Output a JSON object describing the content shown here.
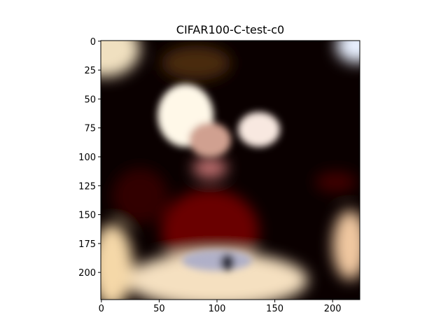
{
  "chart_data": {
    "type": "image",
    "title": "CIFAR100-C-test-c0",
    "xlim": [
      -0.5,
      223.5
    ],
    "ylim": [
      223.5,
      -0.5
    ],
    "xticks": [
      0,
      50,
      100,
      150,
      200
    ],
    "yticks": [
      0,
      25,
      50,
      75,
      100,
      125,
      150,
      175,
      200
    ]
  }
}
